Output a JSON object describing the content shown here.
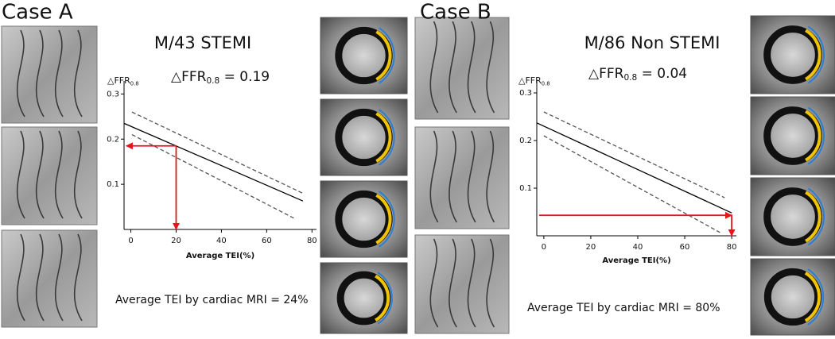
{
  "chart_data": [
    {
      "type": "line",
      "panel": "Case A",
      "title": "M/43 STEMI",
      "y_label": {
        "base": "△FFR",
        "sub": "0.8"
      },
      "annotation": {
        "base": "△FFR",
        "sub": "0.8",
        "rest": " = 0.19"
      },
      "x_label": "Average TEI(%)",
      "caption": "Average TEI by cardiac MRI  = 24%",
      "xlim": [
        -3,
        82
      ],
      "ylim": [
        0,
        0.32
      ],
      "xticks": [
        0,
        20,
        40,
        60,
        80
      ],
      "yticks": [
        0.1,
        0.2,
        0.3
      ],
      "series": [
        {
          "color": "#000000",
          "dashed": false,
          "arrows": false,
          "x": [
            -3,
            76
          ],
          "values": [
            0.235,
            0.063
          ]
        },
        {
          "color": "#555555",
          "dashed": true,
          "arrows": false,
          "x": [
            0.5,
            76
          ],
          "values": [
            0.26,
            0.08
          ]
        },
        {
          "color": "#555555",
          "dashed": true,
          "arrows": false,
          "x": [
            0.5,
            72
          ],
          "values": [
            0.21,
            0.025
          ]
        },
        {
          "color": "#e8141b",
          "dashed": false,
          "arrows": true,
          "x": [
            -2,
            20,
            20
          ],
          "values": [
            0.185,
            0.185,
            0
          ]
        }
      ]
    },
    {
      "type": "line",
      "panel": "Case B",
      "title": "M/86 Non STEMI",
      "y_label": {
        "base": "△FFR",
        "sub": "0.8"
      },
      "annotation": {
        "base": "△FFR",
        "sub": "0.8",
        "rest": " = 0.04"
      },
      "x_label": "Average TEI(%)",
      "caption": "Average TEI by cardiac MRI  = 80%",
      "xlim": [
        -3,
        82
      ],
      "ylim": [
        0,
        0.32
      ],
      "xticks": [
        0,
        20,
        40,
        60,
        80
      ],
      "yticks": [
        0.1,
        0.2,
        0.3
      ],
      "series": [
        {
          "color": "#000000",
          "dashed": false,
          "arrows": false,
          "x": [
            -3,
            80
          ],
          "values": [
            0.237,
            0.048
          ]
        },
        {
          "color": "#555555",
          "dashed": true,
          "arrows": false,
          "x": [
            0,
            77
          ],
          "values": [
            0.26,
            0.08
          ]
        },
        {
          "color": "#555555",
          "dashed": true,
          "arrows": false,
          "x": [
            0,
            75
          ],
          "values": [
            0.21,
            0.007
          ]
        },
        {
          "color": "#e8141b",
          "dashed": false,
          "arrows": true,
          "x": [
            80,
            -2,
            80,
            80
          ],
          "values": [
            0.043,
            0.043,
            0.043,
            0
          ]
        }
      ]
    }
  ]
}
